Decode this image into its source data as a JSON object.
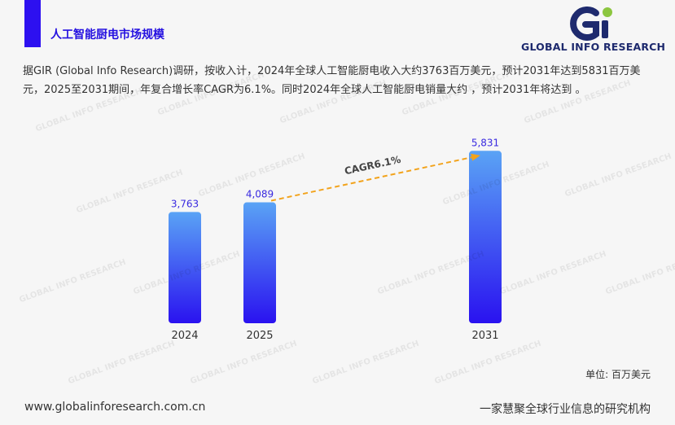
{
  "header": {
    "title": "人工智能厨电市场规模"
  },
  "logo": {
    "mark": "Gi",
    "text": "GLOBAL INFO RESEARCH",
    "colors": {
      "primary": "#1e2a6e",
      "accent": "#8cc63f"
    }
  },
  "summary": "据GIR (Global Info Research)调研，按收入计，2024年全球人工智能厨电收入大约3763百万美元，预计2031年达到5831百万美元，2025至2031期间，年复合增长率CAGR为6.1%。同时2024年全球人工智能厨电销量大约 ，预计2031年将达到 。",
  "chart_data": {
    "type": "bar",
    "categories": [
      "2024",
      "2025",
      "2031"
    ],
    "values": [
      3763,
      4089,
      5831
    ],
    "value_labels": [
      "3,763",
      "4,089",
      "5,831"
    ],
    "cagr_label": "CAGR6.1%",
    "ylim": [
      0,
      6500
    ],
    "colors": {
      "bar_top": "#5aa3f5",
      "bar_bottom": "#2a12f0",
      "label": "#3a2ae0",
      "cagr_line": "#f2a31c"
    }
  },
  "unit_label": "单位: 百万美元",
  "footer": {
    "url": "www.globalinforesearch.com.cn",
    "slogan": "一家慧聚全球行业信息的研究机构"
  },
  "watermark": "GLOBAL INFO RESEARCH"
}
